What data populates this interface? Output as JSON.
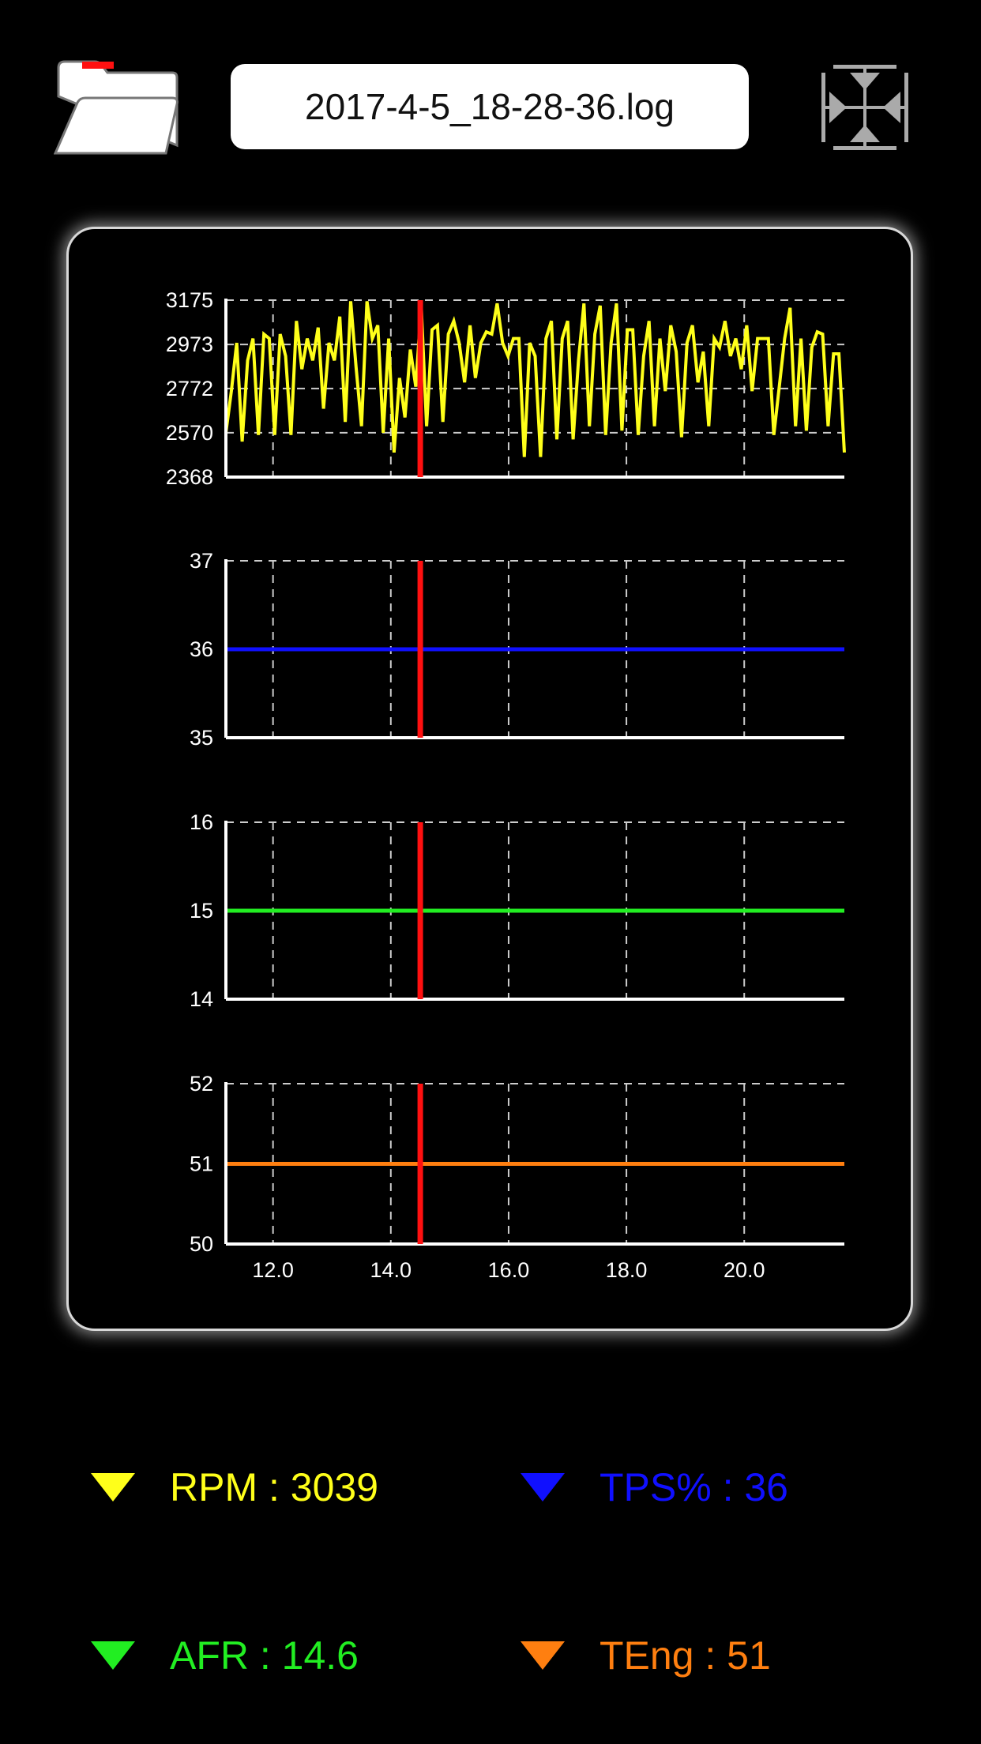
{
  "header": {
    "filename": "2017-4-5_18-28-36.log",
    "folder_icon": "folder-open-icon",
    "fit_icon": "fit-to-screen-icon"
  },
  "colors": {
    "rpm": "#ffff1a",
    "tps": "#1010ff",
    "afr": "#22ee22",
    "teng": "#ff7f10",
    "cursor": "#ff1010",
    "grid": "#cccccc",
    "axis": "#ffffff",
    "folder_tab": "#ff1010"
  },
  "chart_data": [
    {
      "type": "line",
      "series": [
        {
          "values": [
            2570,
            2760,
            2980,
            2530,
            2900,
            3000,
            2560,
            3020,
            3000,
            2560,
            3020,
            2920,
            2560,
            3080,
            2860,
            3000,
            2900,
            3050,
            2680,
            2980,
            2900,
            3100,
            2620,
            3170,
            2870,
            2600,
            3170,
            3000,
            3060,
            2570,
            3000,
            2480,
            2820,
            2640,
            2950,
            2780,
            3150,
            2600,
            3040,
            3060,
            2620,
            3020,
            3080,
            2980,
            2800,
            3060,
            2820,
            2980,
            3030,
            3020,
            3160,
            2980,
            2920,
            3000,
            3000,
            2460,
            2980,
            2920,
            2460,
            3000,
            3080,
            2540,
            3000,
            3080,
            2540,
            2900,
            3160,
            2600,
            3020,
            3150,
            2560,
            2980,
            3160,
            2580,
            3040,
            3040,
            2560,
            2920,
            3080,
            2600,
            3000,
            2760,
            3060,
            2940,
            2550,
            2980,
            3060,
            2800,
            2940,
            2600,
            3000,
            2960,
            3080,
            2920,
            3000,
            2860,
            3060,
            2760,
            3000,
            3000,
            3000,
            2560,
            2780,
            3000,
            3140,
            2600,
            3000,
            2580,
            2960,
            3030,
            3020,
            2600,
            2930,
            2930,
            2480
          ]
        }
      ],
      "x_range": [
        11.2,
        21.7
      ],
      "ylim": [
        2368,
        3175
      ],
      "yticks": [
        "3175",
        "2973",
        "2772",
        "2570",
        "2368"
      ],
      "grid": true
    },
    {
      "type": "line",
      "series": [
        {
          "values": [
            36,
            36
          ]
        }
      ],
      "x_range": [
        11.2,
        21.7
      ],
      "ylim": [
        35,
        37
      ],
      "yticks": [
        "37",
        "36",
        "35"
      ],
      "grid": true
    },
    {
      "type": "line",
      "series": [
        {
          "values": [
            15,
            15
          ]
        }
      ],
      "x_range": [
        11.2,
        21.7
      ],
      "ylim": [
        14,
        16
      ],
      "yticks": [
        "16",
        "15",
        "14"
      ],
      "grid": true
    },
    {
      "type": "line",
      "series": [
        {
          "values": [
            51,
            51
          ]
        }
      ],
      "x_range": [
        11.2,
        21.7
      ],
      "ylim": [
        50,
        52
      ],
      "yticks": [
        "52",
        "51",
        "50"
      ],
      "xticks": [
        "12.0",
        "14.0",
        "16.0",
        "18.0",
        "20.0"
      ],
      "grid": true
    }
  ],
  "cursor_x": 14.5,
  "legend": [
    {
      "label": "RPM : 3039",
      "color": "#ffff1a",
      "icon": "triangle-down-icon"
    },
    {
      "label": "TPS% : 36",
      "color": "#1010ff",
      "icon": "triangle-down-icon"
    },
    {
      "label": "AFR : 14.6",
      "color": "#22ee22",
      "icon": "triangle-down-icon"
    },
    {
      "label": "TEng : 51",
      "color": "#ff7f10",
      "icon": "triangle-down-icon"
    }
  ]
}
